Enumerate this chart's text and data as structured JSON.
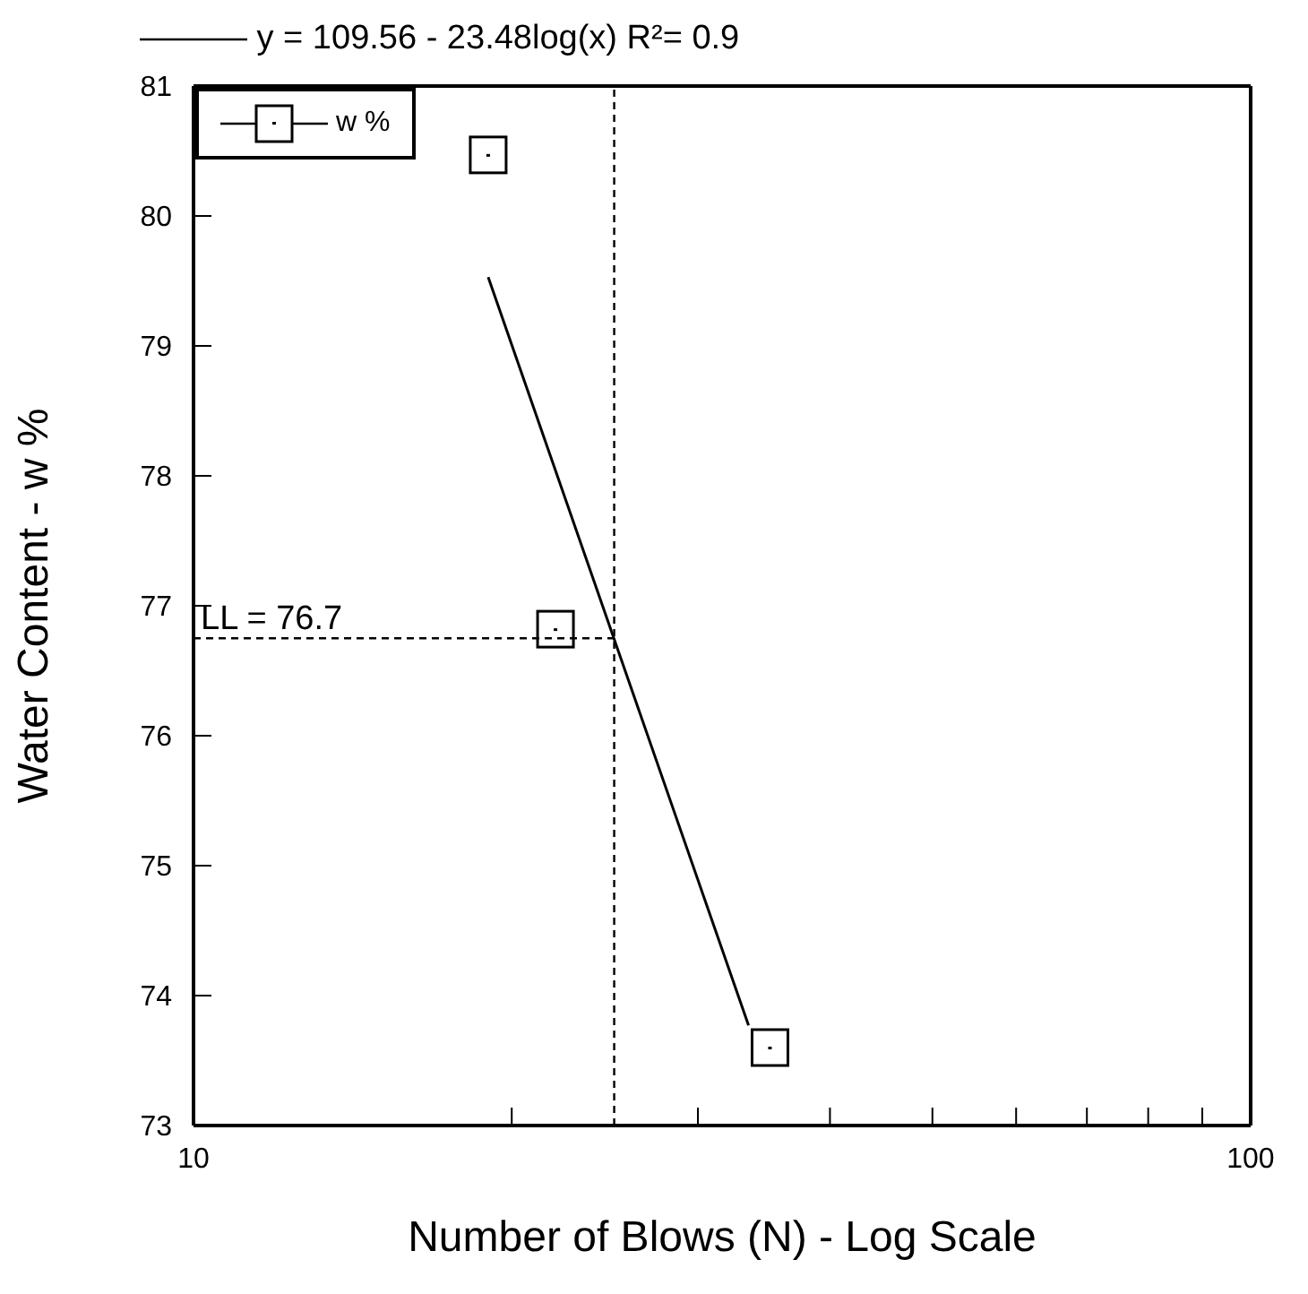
{
  "chart_data": {
    "type": "scatter",
    "xlabel": "Number of Blows (N) - Log Scale",
    "ylabel": "Water Content - w %",
    "series": [
      {
        "name": "w %",
        "color": "#000000",
        "marker": "square",
        "x": [
          19.0,
          22.0,
          35.1
        ],
        "values": [
          80.47,
          76.82,
          73.6
        ]
      },
      {
        "name": "y = 109.56 - 23.48log(x)   R²= 0.9",
        "type": "line",
        "color": "#000000",
        "marker": "none",
        "line_style": "solid",
        "x": [
          19.0,
          33.5
        ],
        "values": [
          79.53,
          73.77
        ]
      }
    ],
    "log": "x",
    "xlim": [
      10,
      100
    ],
    "ylim": [
      73,
      81
    ],
    "xticks": [
      10,
      {
        "value": 20,
        "label": null
      },
      {
        "value": 30,
        "label": null
      },
      {
        "value": 40,
        "label": null
      },
      {
        "value": 50,
        "label": null
      },
      {
        "value": 60,
        "label": null
      },
      {
        "value": 70,
        "label": null
      },
      {
        "value": 80,
        "label": null
      },
      {
        "value": 90,
        "label": null
      },
      100
    ],
    "yticks": [
      73,
      74,
      75,
      76,
      77,
      78,
      79,
      80,
      81
    ],
    "ref_lines": [
      {
        "axis": "x",
        "value": 25,
        "line_style": "dashed"
      },
      {
        "axis": "y",
        "value": 76.75,
        "label": "LL = 76.7",
        "line_style": "dashed"
      }
    ],
    "legend": "top left"
  }
}
